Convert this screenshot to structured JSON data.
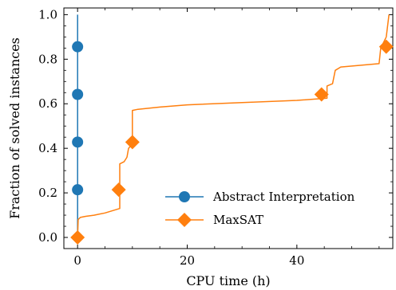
{
  "chart_data": {
    "type": "line",
    "xlabel": "CPU time (h)",
    "ylabel": "Fraction of solved instances",
    "xlim": [
      -2.5,
      57.5
    ],
    "ylim": [
      -0.05,
      1.03
    ],
    "xticks": [
      0,
      20,
      40
    ],
    "yticks": [
      0.0,
      0.2,
      0.4,
      0.6,
      0.8,
      1.0
    ],
    "xtick_labels": [
      "0",
      "20",
      "40"
    ],
    "ytick_labels": [
      "0.0",
      "0.2",
      "0.4",
      "0.6",
      "0.8",
      "1.0"
    ],
    "legend_position": "lower-right",
    "grid": false,
    "series": [
      {
        "name": "Abstract Interpretation",
        "color": "#1f77b4",
        "marker": "circle",
        "line": [
          [
            0,
            0.0
          ],
          [
            0,
            1.0
          ]
        ],
        "markers": [
          [
            0,
            0.214
          ],
          [
            0,
            0.428
          ],
          [
            0,
            0.642
          ],
          [
            0,
            0.856
          ]
        ]
      },
      {
        "name": "MaxSAT",
        "color": "#ff7f0e",
        "marker": "diamond",
        "line": [
          [
            0,
            0.0
          ],
          [
            0.1,
            0.08
          ],
          [
            0.5,
            0.09
          ],
          [
            1.5,
            0.095
          ],
          [
            3,
            0.1
          ],
          [
            5,
            0.11
          ],
          [
            7.7,
            0.13
          ],
          [
            7.7,
            0.33
          ],
          [
            8.5,
            0.34
          ],
          [
            9.0,
            0.36
          ],
          [
            9.3,
            0.4
          ],
          [
            10.0,
            0.42
          ],
          [
            10.0,
            0.57
          ],
          [
            11,
            0.575
          ],
          [
            15,
            0.585
          ],
          [
            20,
            0.595
          ],
          [
            30,
            0.605
          ],
          [
            40,
            0.615
          ],
          [
            45.5,
            0.625
          ],
          [
            45.5,
            0.68
          ],
          [
            46.5,
            0.69
          ],
          [
            47.0,
            0.75
          ],
          [
            48,
            0.765
          ],
          [
            55,
            0.78
          ],
          [
            55.3,
            0.85
          ],
          [
            56.3,
            0.9
          ],
          [
            56.8,
            1.0
          ]
        ],
        "markers": [
          [
            0,
            0.0
          ],
          [
            7.5,
            0.214
          ],
          [
            10.0,
            0.428
          ],
          [
            44.5,
            0.642
          ],
          [
            56.3,
            0.856
          ]
        ]
      }
    ]
  }
}
